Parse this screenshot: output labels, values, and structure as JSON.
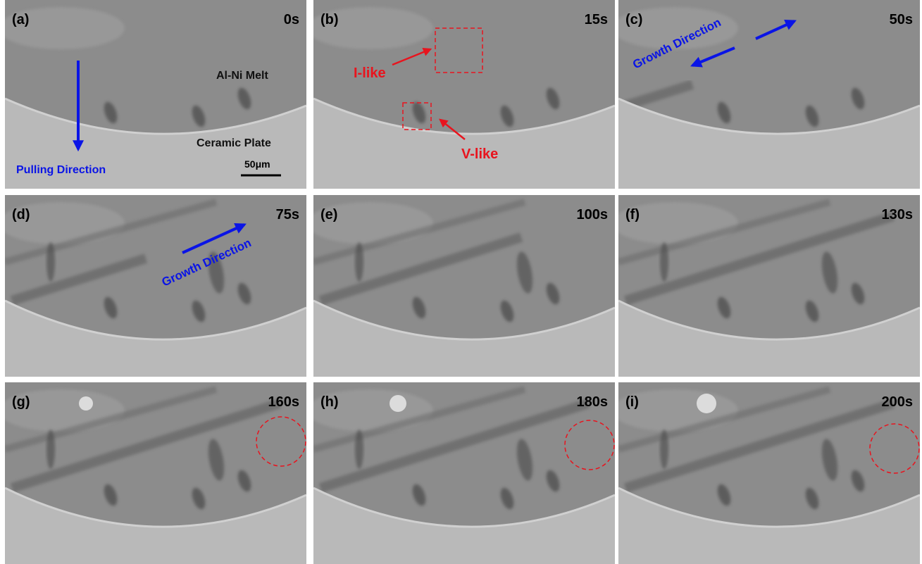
{
  "panels": [
    {
      "label": "(a)",
      "time": "0s"
    },
    {
      "label": "(b)",
      "time": "15s"
    },
    {
      "label": "(c)",
      "time": "50s"
    },
    {
      "label": "(d)",
      "time": "75s"
    },
    {
      "label": "(e)",
      "time": "100s"
    },
    {
      "label": "(f)",
      "time": "130s"
    },
    {
      "label": "(g)",
      "time": "160s"
    },
    {
      "label": "(h)",
      "time": "180s"
    },
    {
      "label": "(i)",
      "time": "200s"
    }
  ],
  "annotations": {
    "melt": "Al-Ni Melt",
    "plate": "Ceramic Plate",
    "pulling": "Pulling Direction",
    "scale": "50μm",
    "i_like": "I-like",
    "v_like": "V-like",
    "growth_c": "Growth Direction",
    "growth_d": "Growth Direction"
  }
}
